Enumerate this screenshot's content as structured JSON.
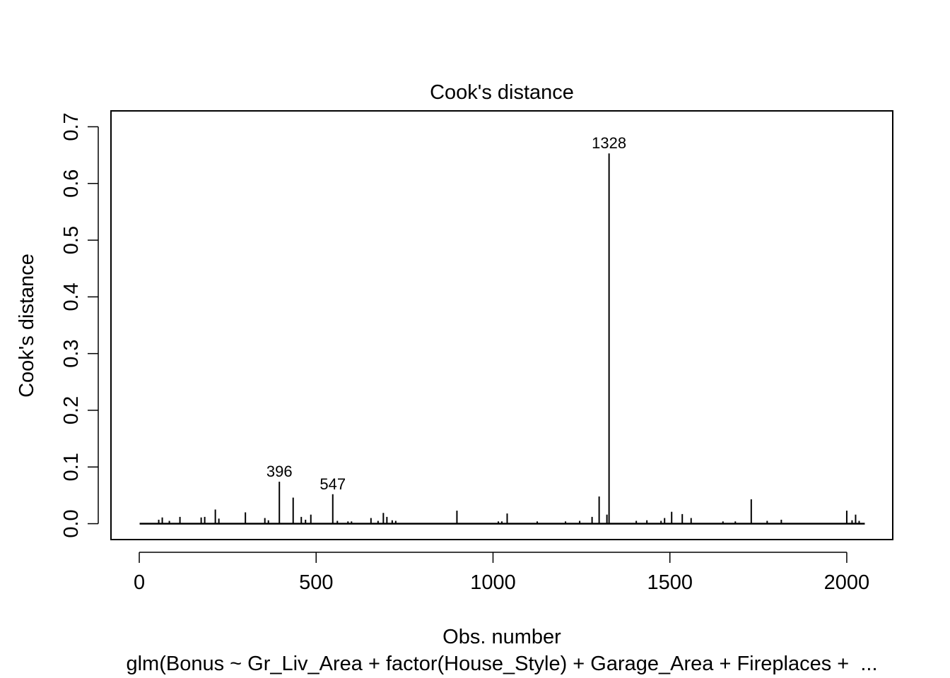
{
  "chart_data": {
    "type": "bar",
    "title": "Cook's distance",
    "xlabel": "Obs. number",
    "ylabel": "Cook's distance",
    "subtitle": "glm(Bonus ~ Gr_Liv_Area + factor(House_Style) + Garage_Area + Fireplaces +  ...",
    "xlim": [
      -80,
      2130
    ],
    "ylim": [
      -0.028,
      0.728
    ],
    "x_ticks": [
      0,
      500,
      1000,
      1500,
      2000
    ],
    "x_tick_labels": [
      "0",
      "500",
      "1000",
      "1500",
      "2000"
    ],
    "y_ticks": [
      0.0,
      0.1,
      0.2,
      0.3,
      0.4,
      0.5,
      0.6,
      0.7
    ],
    "y_tick_labels": [
      "0.0",
      "0.1",
      "0.2",
      "0.3",
      "0.4",
      "0.5",
      "0.6",
      "0.7"
    ],
    "n_observations": 2051,
    "grid": false,
    "legend": "none",
    "line_color": "#000000",
    "points": [
      {
        "x": 55,
        "y": 0.007
      },
      {
        "x": 65,
        "y": 0.011
      },
      {
        "x": 85,
        "y": 0.005
      },
      {
        "x": 115,
        "y": 0.012
      },
      {
        "x": 175,
        "y": 0.011
      },
      {
        "x": 185,
        "y": 0.012
      },
      {
        "x": 215,
        "y": 0.025
      },
      {
        "x": 225,
        "y": 0.009
      },
      {
        "x": 300,
        "y": 0.02
      },
      {
        "x": 355,
        "y": 0.01
      },
      {
        "x": 365,
        "y": 0.006
      },
      {
        "x": 396,
        "y": 0.074
      },
      {
        "x": 435,
        "y": 0.046
      },
      {
        "x": 458,
        "y": 0.012
      },
      {
        "x": 470,
        "y": 0.007
      },
      {
        "x": 485,
        "y": 0.016
      },
      {
        "x": 547,
        "y": 0.052
      },
      {
        "x": 560,
        "y": 0.005
      },
      {
        "x": 590,
        "y": 0.004
      },
      {
        "x": 600,
        "y": 0.004
      },
      {
        "x": 655,
        "y": 0.01
      },
      {
        "x": 675,
        "y": 0.005
      },
      {
        "x": 690,
        "y": 0.019
      },
      {
        "x": 700,
        "y": 0.012
      },
      {
        "x": 715,
        "y": 0.006
      },
      {
        "x": 725,
        "y": 0.005
      },
      {
        "x": 898,
        "y": 0.023
      },
      {
        "x": 1015,
        "y": 0.004
      },
      {
        "x": 1025,
        "y": 0.004
      },
      {
        "x": 1040,
        "y": 0.018
      },
      {
        "x": 1125,
        "y": 0.004
      },
      {
        "x": 1205,
        "y": 0.004
      },
      {
        "x": 1245,
        "y": 0.005
      },
      {
        "x": 1280,
        "y": 0.012
      },
      {
        "x": 1300,
        "y": 0.048
      },
      {
        "x": 1322,
        "y": 0.016
      },
      {
        "x": 1328,
        "y": 0.653
      },
      {
        "x": 1405,
        "y": 0.005
      },
      {
        "x": 1435,
        "y": 0.006
      },
      {
        "x": 1475,
        "y": 0.005
      },
      {
        "x": 1485,
        "y": 0.01
      },
      {
        "x": 1505,
        "y": 0.021
      },
      {
        "x": 1535,
        "y": 0.017
      },
      {
        "x": 1560,
        "y": 0.01
      },
      {
        "x": 1650,
        "y": 0.004
      },
      {
        "x": 1685,
        "y": 0.004
      },
      {
        "x": 1730,
        "y": 0.043
      },
      {
        "x": 1775,
        "y": 0.005
      },
      {
        "x": 1815,
        "y": 0.007
      },
      {
        "x": 2000,
        "y": 0.023
      },
      {
        "x": 2015,
        "y": 0.006
      },
      {
        "x": 2025,
        "y": 0.016
      },
      {
        "x": 2035,
        "y": 0.005
      }
    ],
    "annotations": [
      {
        "x": 396,
        "y": 0.074,
        "label": "396"
      },
      {
        "x": 547,
        "y": 0.052,
        "label": "547"
      },
      {
        "x": 1328,
        "y": 0.653,
        "label": "1328"
      }
    ]
  }
}
